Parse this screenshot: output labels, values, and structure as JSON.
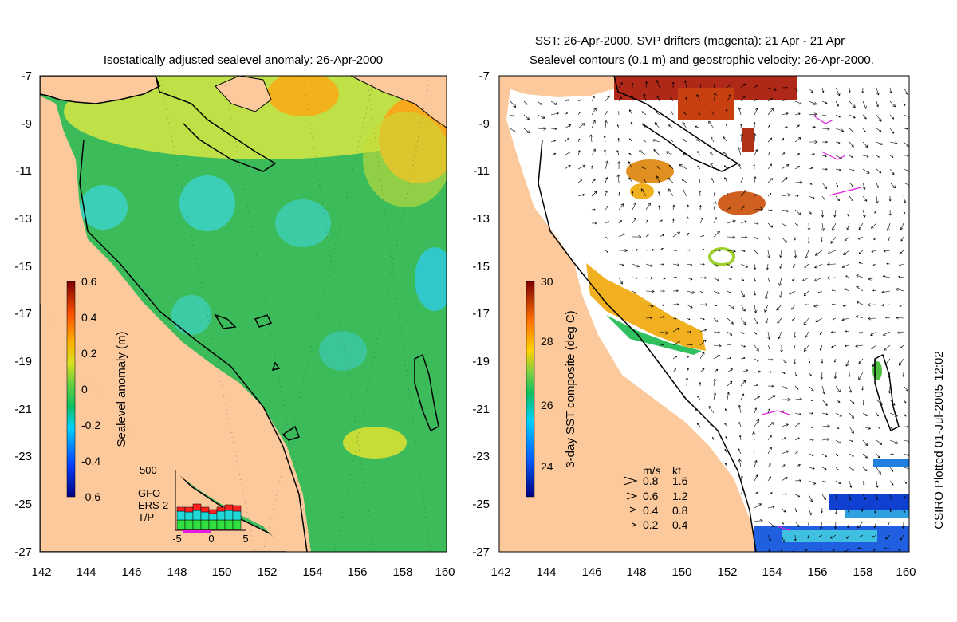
{
  "left_panel": {
    "title": "Isostatically adjusted sealevel anomaly: 26-Apr-2000",
    "colorbar_label": "Sealevel anomaly (m)",
    "colorbar_ticks": [
      "0.6",
      "0.4",
      "0.2",
      "0",
      "-0.2",
      "-0.4",
      "-0.6"
    ],
    "colors": {
      "land": "#fbc99b",
      "coast": "#000000"
    }
  },
  "right_panel": {
    "title_line1": "SST: 26-Apr-2000. SVP drifters (magenta): 21 Apr - 21 Apr",
    "title_line2": "Sealevel contours (0.1 m) and geostrophic velocity: 26-Apr-2000.",
    "colorbar_label": "3-day SST composite (deg C)",
    "colorbar_ticks": [
      "30",
      "28",
      "26",
      "24"
    ],
    "colors": {
      "land": "#fbc99b",
      "drifter": "#e020e0"
    }
  },
  "axes": {
    "x_ticks": [
      "142",
      "144",
      "146",
      "148",
      "150",
      "152",
      "154",
      "156",
      "158",
      "160"
    ],
    "y_ticks": [
      "-7",
      "-9",
      "-11",
      "-13",
      "-15",
      "-17",
      "-19",
      "-21",
      "-23",
      "-25",
      "-27"
    ],
    "lon_range": [
      142,
      160
    ],
    "lat_range": [
      -27,
      -7
    ]
  },
  "inset": {
    "top_label": "500",
    "x_ticks": [
      "-5",
      "0",
      "5"
    ],
    "legend": [
      {
        "label": "GFO",
        "color": "#ff2020"
      },
      {
        "label": "ERS-2",
        "color": "#20d8d8"
      },
      {
        "label": "T/P",
        "color": "#30e040"
      }
    ]
  },
  "velocity_legend": {
    "header_ms": "m/s",
    "header_kt": "kt",
    "rows": [
      {
        "ms": "0.8",
        "kt": "1.6"
      },
      {
        "ms": "0.6",
        "kt": "1.2"
      },
      {
        "ms": "0.4",
        "kt": "0.8"
      },
      {
        "ms": "0.2",
        "kt": "0.4"
      }
    ]
  },
  "credit": "CSIRO Plotted 01-Jul-2005 12:02"
}
